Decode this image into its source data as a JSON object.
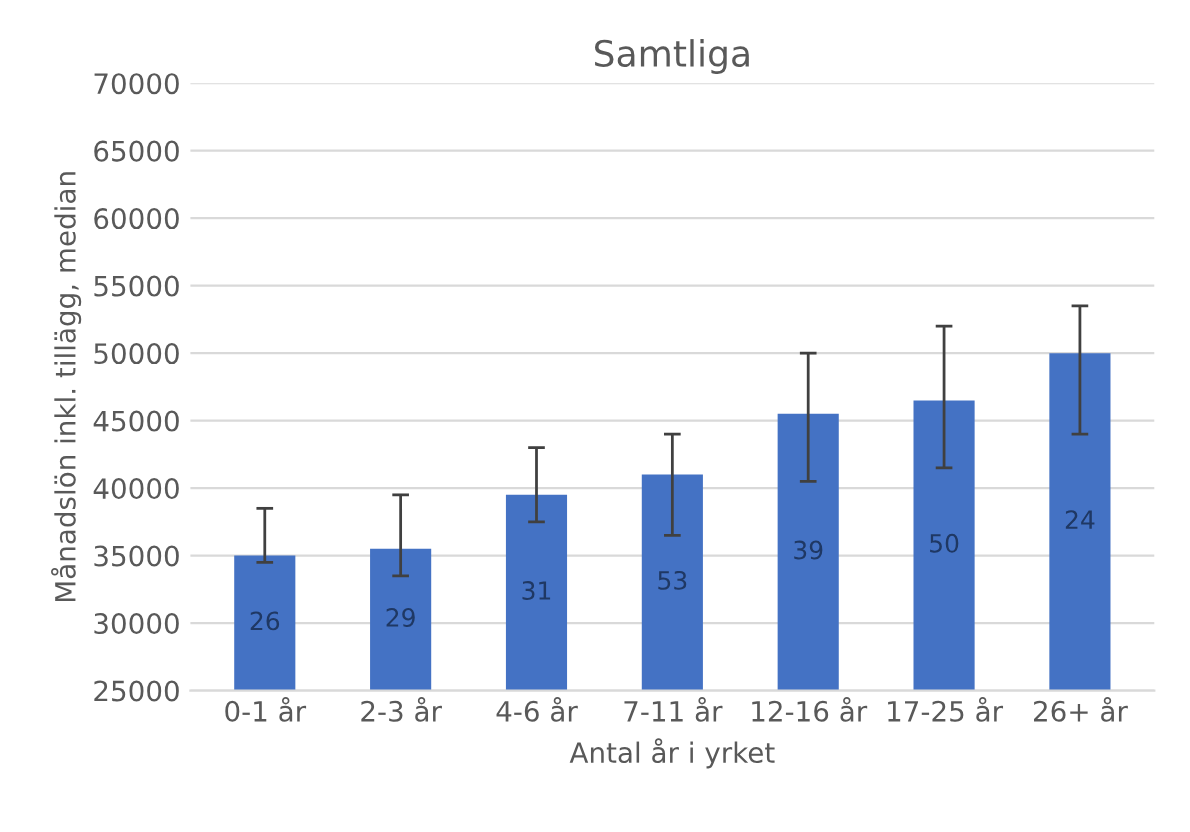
{
  "chart_data": {
    "type": "bar",
    "title": "Samtliga",
    "xlabel": "Antal år i yrket",
    "ylabel": "Månadslön inkl. tillägg, median",
    "categories": [
      "0-1 år",
      "2-3 år",
      "4-6 år",
      "7-11 år",
      "12-16 år",
      "17-25 år",
      "26+ år"
    ],
    "values": [
      35000,
      35500,
      39500,
      41000,
      45500,
      46500,
      50000
    ],
    "errors": [
      [
        34500,
        38500
      ],
      [
        33500,
        39500
      ],
      [
        37500,
        43000
      ],
      [
        36500,
        44000
      ],
      [
        40500,
        50000
      ],
      [
        41500,
        52000
      ],
      [
        44000,
        53500
      ]
    ],
    "color": "#4472c4",
    "ylim": [
      25000,
      70000
    ],
    "yticks": [
      25000,
      30000,
      35000,
      40000,
      45000,
      50000,
      55000,
      60000,
      65000,
      70000
    ],
    "grid": "y",
    "annotations": [
      "26",
      "29",
      "31",
      "53",
      "39",
      "50",
      "24"
    ]
  }
}
